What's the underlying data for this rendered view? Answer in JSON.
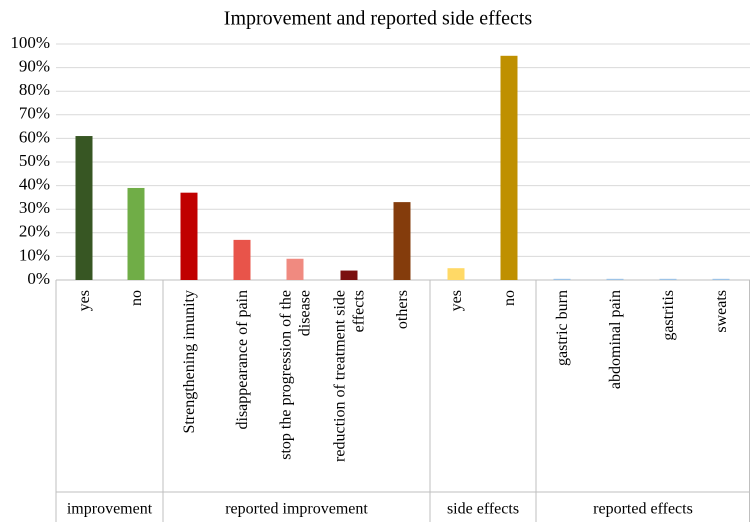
{
  "chart_data": {
    "type": "bar",
    "title": "Improvement and reported side effects",
    "xlabel": "",
    "ylabel": "",
    "ylim": [
      0,
      100
    ],
    "y_ticks": [
      "0%",
      "10%",
      "20%",
      "30%",
      "40%",
      "50%",
      "60%",
      "70%",
      "80%",
      "90%",
      "100%"
    ],
    "grid": true,
    "legend": "none",
    "groups": [
      {
        "name": "improvement",
        "bars": [
          {
            "label": "yes",
            "value": 61,
            "color": "#375623"
          },
          {
            "label": "no",
            "value": 39,
            "color": "#70ad47"
          }
        ]
      },
      {
        "name": "reported improvement",
        "bars": [
          {
            "label": "Strengthening imunity",
            "value": 37,
            "color": "#c00000"
          },
          {
            "label": "disappearance of pain",
            "value": 17,
            "color": "#e8544a"
          },
          {
            "label": "stop the progression of the disease",
            "value": 9,
            "color": "#f08a80"
          },
          {
            "label": "reduction of treatment side effects",
            "value": 4,
            "color": "#7b1010"
          },
          {
            "label": "others",
            "value": 33,
            "color": "#843c0c"
          }
        ]
      },
      {
        "name": "side effects",
        "bars": [
          {
            "label": "yes",
            "value": 5,
            "color": "#ffd966"
          },
          {
            "label": "no",
            "value": 95,
            "color": "#bf9000"
          }
        ]
      },
      {
        "name": "reported effects",
        "bars": [
          {
            "label": "gastric burn",
            "value": 0.5,
            "color": "#9dc3e6"
          },
          {
            "label": "abdominal pain",
            "value": 0.5,
            "color": "#9dc3e6"
          },
          {
            "label": "gastritis",
            "value": 0.5,
            "color": "#9dc3e6"
          },
          {
            "label": "sweats",
            "value": 0.5,
            "color": "#9dc3e6"
          }
        ]
      }
    ]
  }
}
